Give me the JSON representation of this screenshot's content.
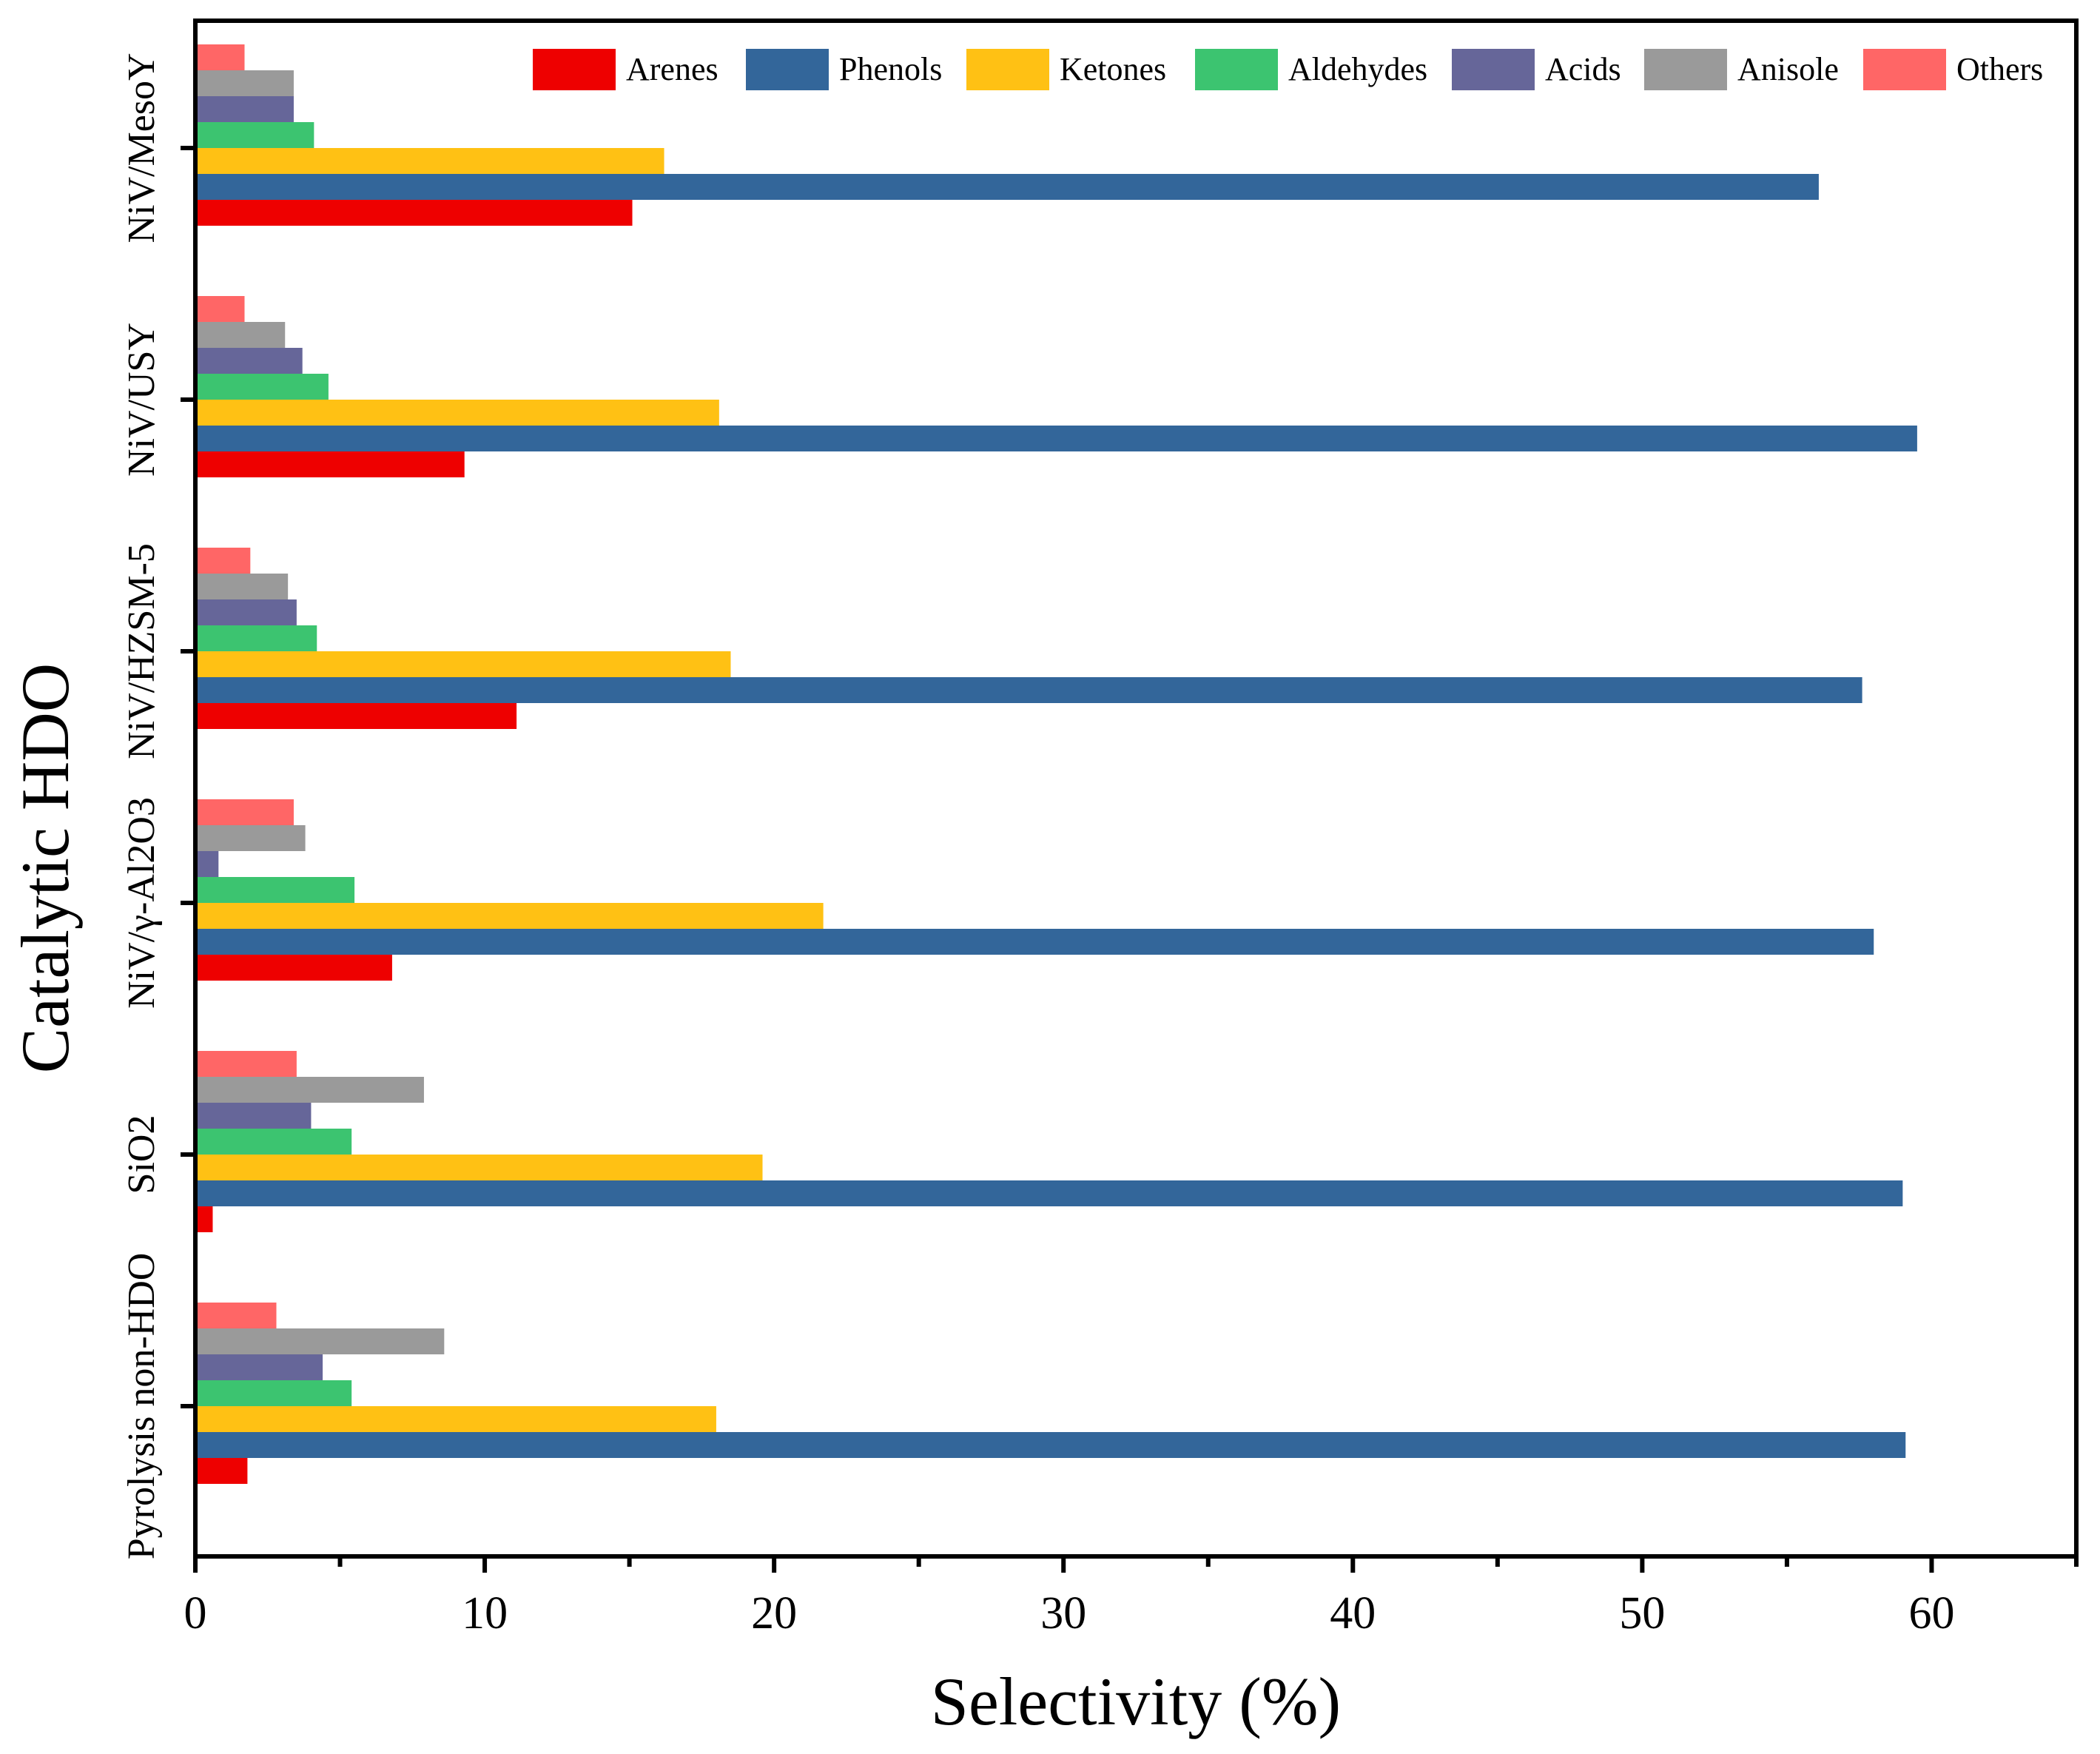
{
  "chart_data": {
    "type": "bar",
    "orientation": "horizontal",
    "title": "",
    "xlabel": "Selectivity (%)",
    "ylabel": "Catalytic HDO",
    "xlim": [
      0,
      65
    ],
    "xticks": [
      0,
      10,
      20,
      30,
      40,
      50,
      60
    ],
    "grid": false,
    "legend_position": "top-right",
    "categories": [
      "Pyrolysis non-HDO",
      "SiO2",
      "NiV/γ-Al2O3",
      "NiV/HZSM-5",
      "NiV/USY",
      "NiV/MesoY"
    ],
    "series": [
      {
        "name": "Arenes",
        "color": "#ee0000",
        "values": [
          1.8,
          0.6,
          6.8,
          11.1,
          9.3,
          15.1
        ]
      },
      {
        "name": "Phenols",
        "color": "#33669a",
        "values": [
          59.1,
          59.0,
          58.0,
          57.6,
          59.5,
          56.1
        ]
      },
      {
        "name": "Ketones",
        "color": "#ffc114",
        "values": [
          18.0,
          19.6,
          21.7,
          18.5,
          18.1,
          16.2
        ]
      },
      {
        "name": "Aldehydes",
        "color": "#3cc470",
        "values": [
          5.4,
          5.4,
          5.5,
          4.2,
          4.6,
          4.1
        ]
      },
      {
        "name": "Acids",
        "color": "#666699",
        "values": [
          4.4,
          4.0,
          0.8,
          3.5,
          3.7,
          3.4
        ]
      },
      {
        "name": "Anisole",
        "color": "#9a9a9a",
        "values": [
          8.6,
          7.9,
          3.8,
          3.2,
          3.1,
          3.4
        ]
      },
      {
        "name": "Others",
        "color": "#ff6666",
        "values": [
          2.8,
          3.5,
          3.4,
          1.9,
          1.7,
          1.7
        ]
      }
    ]
  }
}
